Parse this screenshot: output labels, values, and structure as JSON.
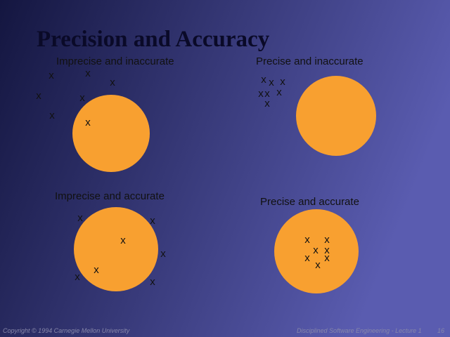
{
  "title": "Precision and Accuracy",
  "panels": [
    {
      "label": "Imprecise and inaccurate",
      "marks": [
        "x",
        "x",
        "x",
        "x",
        "x",
        "x",
        "x"
      ]
    },
    {
      "label": "Precise and inaccurate",
      "marks": [
        "x",
        "x",
        "x",
        "x",
        "x",
        "x",
        "x"
      ]
    },
    {
      "label": "Imprecise and accurate",
      "marks": [
        "x",
        "x",
        "x",
        "x",
        "x",
        "x",
        "x"
      ]
    },
    {
      "label": "Precise and accurate",
      "marks": [
        "x",
        "x",
        "x",
        "x",
        "x",
        "x",
        "x"
      ]
    }
  ],
  "footer": {
    "left": "Copyright © 1994 Carnegie Mellon University",
    "right": "Disciplined Software Engineering - Lecture 1",
    "page": "16"
  }
}
